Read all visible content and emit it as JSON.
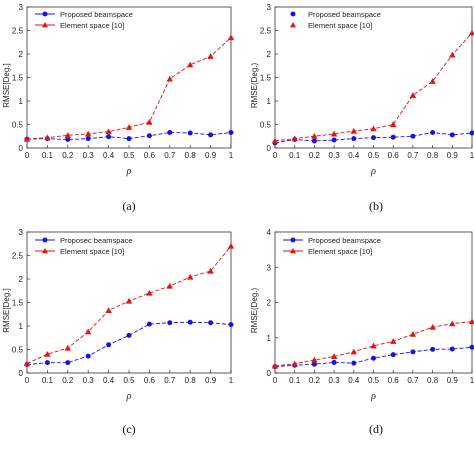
{
  "chart_data": [
    {
      "type": "line",
      "caption": "(a)",
      "xlabel": "ρ",
      "ylabel": "RMSE[Deg.]",
      "xlim": [
        0,
        1
      ],
      "ylim": [
        0,
        3
      ],
      "xticks": [
        0,
        0.1,
        0.2,
        0.3,
        0.4,
        0.5,
        0.6,
        0.7,
        0.8,
        0.9,
        1
      ],
      "xtick_labels": [
        "0",
        "0.1",
        "0.2",
        "0.3",
        "0.4",
        "0.5",
        "0.6",
        "0.7",
        "0.8",
        "0.9",
        "1"
      ],
      "yticks": [
        0,
        0.5,
        1,
        1.5,
        2,
        2.5,
        3
      ],
      "ytick_labels": [
        "0",
        "0.5",
        "1",
        "1.5",
        "2",
        "2.5",
        "3"
      ],
      "legend": "top-left",
      "x": [
        0,
        0.1,
        0.2,
        0.3,
        0.4,
        0.5,
        0.6,
        0.7,
        0.8,
        0.9,
        1
      ],
      "series": [
        {
          "name": "Proposed beamspace",
          "color": "#1515e0",
          "marker": "circle",
          "values": [
            0.19,
            0.2,
            0.18,
            0.2,
            0.24,
            0.2,
            0.26,
            0.33,
            0.32,
            0.28,
            0.33
          ]
        },
        {
          "name": "Element space [10]",
          "color": "#e01515",
          "marker": "triangle",
          "values": [
            0.19,
            0.22,
            0.27,
            0.3,
            0.35,
            0.44,
            0.55,
            1.47,
            1.77,
            1.95,
            2.35
          ]
        }
      ]
    },
    {
      "type": "line",
      "caption": "(b)",
      "xlabel": "ρ",
      "ylabel": "RMSE(Deg.)",
      "xlim": [
        0,
        1
      ],
      "ylim": [
        0,
        3
      ],
      "xticks": [
        0,
        0.1,
        0.2,
        0.3,
        0.4,
        0.5,
        0.6,
        0.7,
        0.8,
        0.9,
        1
      ],
      "xtick_labels": [
        "0",
        "0.1",
        "0.2",
        "0.3",
        "0.4",
        "0.5",
        "0.6",
        "0.7",
        "0.8",
        "0.9",
        "1"
      ],
      "yticks": [
        0,
        0.5,
        1,
        1.5,
        2,
        2.5,
        3
      ],
      "ytick_labels": [
        "0",
        "0.5",
        "1",
        "1.5",
        "2",
        "2.5",
        "3"
      ],
      "legend": "top-left",
      "x": [
        0,
        0.1,
        0.2,
        0.3,
        0.4,
        0.5,
        0.6,
        0.7,
        0.8,
        0.9,
        1
      ],
      "series": [
        {
          "name": "Proposed beamspace",
          "color": "#1515e0",
          "marker": "circle",
          "values": [
            0.11,
            0.18,
            0.15,
            0.17,
            0.2,
            0.22,
            0.23,
            0.25,
            0.33,
            0.28,
            0.32
          ]
        },
        {
          "name": "Element space [10]",
          "color": "#e01515",
          "marker": "triangle",
          "values": [
            0.15,
            0.2,
            0.25,
            0.3,
            0.36,
            0.41,
            0.5,
            1.12,
            1.42,
            1.98,
            2.45
          ]
        }
      ]
    },
    {
      "type": "line",
      "caption": "(c)",
      "xlabel": "ρ",
      "ylabel": "RMSE[Deg.]",
      "xlim": [
        0,
        1
      ],
      "ylim": [
        0,
        3
      ],
      "xticks": [
        0,
        0.1,
        0.2,
        0.3,
        0.4,
        0.5,
        0.6,
        0.7,
        0.8,
        0.9,
        1
      ],
      "xtick_labels": [
        "0",
        "0.1",
        "0.2",
        "0.3",
        "0.4",
        "0.5",
        "0.6",
        "0.7",
        "0.8",
        "0.9",
        "1"
      ],
      "yticks": [
        0,
        0.5,
        1,
        1.5,
        2,
        2.5,
        3
      ],
      "ytick_labels": [
        "0",
        "0.5",
        "1",
        "1.5",
        "2",
        "2.5",
        "3"
      ],
      "legend": "top-left",
      "x": [
        0,
        0.1,
        0.2,
        0.3,
        0.4,
        0.5,
        0.6,
        0.7,
        0.8,
        0.9,
        1
      ],
      "series": [
        {
          "name": "Proposec beamspace",
          "color": "#1515e0",
          "marker": "circle",
          "values": [
            0.18,
            0.22,
            0.22,
            0.36,
            0.6,
            0.8,
            1.04,
            1.07,
            1.08,
            1.07,
            1.03
          ]
        },
        {
          "name": "Element space [10]",
          "color": "#e01515",
          "marker": "triangle",
          "values": [
            0.2,
            0.4,
            0.53,
            0.88,
            1.33,
            1.53,
            1.7,
            1.85,
            2.04,
            2.17,
            2.7
          ]
        }
      ]
    },
    {
      "type": "line",
      "caption": "(d)",
      "xlabel": "ρ",
      "ylabel": "RMSE(Deg.)",
      "xlim": [
        0,
        1
      ],
      "ylim": [
        0,
        4
      ],
      "xticks": [
        0,
        0.1,
        0.2,
        0.3,
        0.4,
        0.5,
        0.6,
        0.7,
        0.8,
        0.9,
        1
      ],
      "xtick_labels": [
        "0",
        "0.1",
        "0.2",
        "0.3",
        "0.4",
        "0.5",
        "0.6",
        "0.7",
        "0.8",
        "0.9",
        "1"
      ],
      "yticks": [
        0,
        1,
        2,
        3,
        4
      ],
      "ytick_labels": [
        "0",
        "1",
        "2",
        "3",
        "4"
      ],
      "legend": "top-left",
      "x": [
        0,
        0.1,
        0.2,
        0.3,
        0.4,
        0.5,
        0.6,
        0.7,
        0.8,
        0.9,
        1
      ],
      "series": [
        {
          "name": "Proposed beamspace",
          "color": "#1515e0",
          "marker": "circle",
          "values": [
            0.18,
            0.22,
            0.25,
            0.3,
            0.28,
            0.42,
            0.52,
            0.6,
            0.67,
            0.68,
            0.73
          ]
        },
        {
          "name": "Element space [10]",
          "color": "#e01515",
          "marker": "triangle",
          "values": [
            0.2,
            0.26,
            0.37,
            0.47,
            0.6,
            0.77,
            0.9,
            1.1,
            1.3,
            1.4,
            1.46
          ]
        }
      ]
    }
  ]
}
